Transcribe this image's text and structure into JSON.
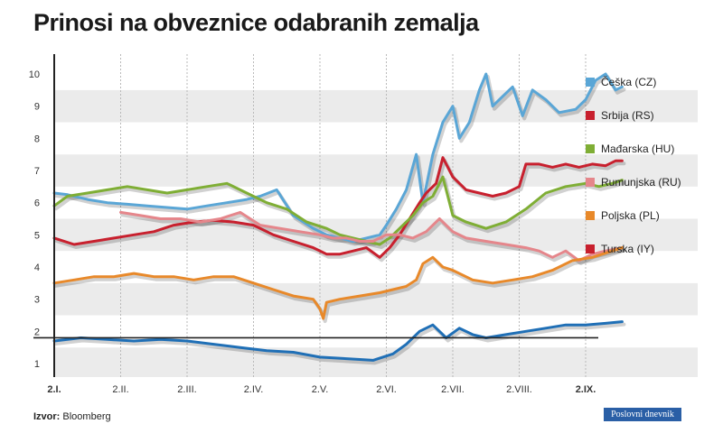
{
  "chart_data": {
    "type": "line",
    "title": "Prinosi na obveznice odabranih zemalja",
    "xlabel": "",
    "ylabel": "",
    "ylim": [
      0.5,
      10.5
    ],
    "yticks": [
      1,
      2,
      3,
      4,
      5,
      6,
      7,
      8,
      9,
      10
    ],
    "reference_line": 1.8,
    "x_months": [
      {
        "label": "2.I.",
        "month": 0,
        "bold": true
      },
      {
        "label": "2.II.",
        "month": 1,
        "bold": false
      },
      {
        "label": "2.III.",
        "month": 2,
        "bold": false
      },
      {
        "label": "2.IV.",
        "month": 3,
        "bold": false
      },
      {
        "label": "2.V.",
        "month": 4,
        "bold": false
      },
      {
        "label": "2.VI.",
        "month": 5,
        "bold": false
      },
      {
        "label": "2.VII.",
        "month": 6,
        "bold": false
      },
      {
        "label": "2.VIII.",
        "month": 7,
        "bold": false
      },
      {
        "label": "2.IX.",
        "month": 8,
        "bold": true
      }
    ],
    "x_end_month": 8.6,
    "series": [
      {
        "name": "Češka (CZ)",
        "color": "#5aa6d6",
        "x": [
          0,
          0.2,
          0.5,
          0.8,
          1.1,
          1.4,
          1.7,
          2.0,
          2.3,
          2.6,
          2.9,
          3.1,
          3.35,
          3.6,
          3.9,
          4.1,
          4.3,
          4.5,
          4.7,
          4.9,
          5.0,
          5.15,
          5.3,
          5.45,
          5.55,
          5.7,
          5.85,
          6.0,
          6.1,
          6.25,
          6.4,
          6.5,
          6.6,
          6.75,
          6.9,
          7.05,
          7.2,
          7.4,
          7.6,
          7.85,
          8.0,
          8.15,
          8.3,
          8.45,
          8.55
        ],
        "y": [
          6.3,
          6.25,
          6.1,
          6.0,
          5.95,
          5.9,
          5.85,
          5.8,
          5.9,
          6.0,
          6.1,
          6.2,
          6.4,
          5.6,
          5.2,
          5.0,
          4.9,
          4.8,
          4.9,
          5.0,
          5.3,
          5.8,
          6.4,
          7.5,
          6.0,
          7.5,
          8.5,
          9.0,
          8.0,
          8.5,
          9.5,
          10.0,
          9.0,
          9.3,
          9.6,
          8.7,
          9.5,
          9.2,
          8.8,
          8.9,
          9.2,
          9.8,
          10.0,
          9.5,
          9.6
        ]
      },
      {
        "name": "Srbija (RS)",
        "color": "#c8202e",
        "x": [
          0,
          0.3,
          0.6,
          0.9,
          1.2,
          1.5,
          1.8,
          2.1,
          2.4,
          2.7,
          3.0,
          3.3,
          3.6,
          3.9,
          4.1,
          4.3,
          4.5,
          4.7,
          4.9,
          5.05,
          5.2,
          5.35,
          5.5,
          5.6,
          5.75,
          5.85,
          6.0,
          6.2,
          6.4,
          6.6,
          6.8,
          7.0,
          7.1,
          7.3,
          7.5,
          7.7,
          7.9,
          8.1,
          8.3,
          8.45,
          8.55
        ],
        "y": [
          4.9,
          4.7,
          4.8,
          4.9,
          5.0,
          5.1,
          5.3,
          5.4,
          5.45,
          5.4,
          5.3,
          5.0,
          4.8,
          4.6,
          4.4,
          4.4,
          4.5,
          4.6,
          4.3,
          4.6,
          5.0,
          5.5,
          6.0,
          6.3,
          6.6,
          7.4,
          6.8,
          6.4,
          6.3,
          6.2,
          6.3,
          6.5,
          7.2,
          7.2,
          7.1,
          7.2,
          7.1,
          7.2,
          7.15,
          7.3,
          7.3
        ]
      },
      {
        "name": "Mađarska (HU)",
        "color": "#7fae35",
        "x": [
          0,
          0.2,
          0.5,
          0.8,
          1.1,
          1.4,
          1.7,
          2.0,
          2.3,
          2.6,
          2.9,
          3.2,
          3.5,
          3.8,
          4.1,
          4.3,
          4.5,
          4.7,
          4.9,
          5.05,
          5.2,
          5.4,
          5.55,
          5.7,
          5.85,
          6.0,
          6.2,
          6.5,
          6.8,
          7.1,
          7.4,
          7.7,
          8.0,
          8.2,
          8.4,
          8.55
        ],
        "y": [
          5.9,
          6.2,
          6.3,
          6.4,
          6.5,
          6.4,
          6.3,
          6.4,
          6.5,
          6.6,
          6.3,
          6.0,
          5.8,
          5.4,
          5.2,
          5.0,
          4.9,
          4.8,
          4.7,
          4.9,
          5.2,
          5.6,
          6.0,
          6.2,
          6.8,
          5.6,
          5.4,
          5.2,
          5.4,
          5.8,
          6.3,
          6.5,
          6.6,
          6.5,
          6.6,
          6.7
        ]
      },
      {
        "name": "Rumunjska (RU)",
        "color": "#e5868b",
        "x": [
          1.0,
          1.3,
          1.6,
          1.9,
          2.2,
          2.5,
          2.8,
          3.1,
          3.4,
          3.7,
          4.0,
          4.2,
          4.4,
          4.6,
          4.8,
          5.0,
          5.2,
          5.4,
          5.6,
          5.8,
          6.0,
          6.2,
          6.5,
          6.8,
          7.1,
          7.3,
          7.5,
          7.7,
          7.9,
          8.1,
          8.3,
          8.55
        ],
        "y": [
          5.7,
          5.6,
          5.5,
          5.5,
          5.4,
          5.5,
          5.7,
          5.3,
          5.2,
          5.1,
          5.0,
          4.9,
          4.9,
          4.8,
          4.8,
          5.0,
          5.0,
          4.9,
          5.1,
          5.5,
          5.1,
          4.9,
          4.8,
          4.7,
          4.6,
          4.5,
          4.3,
          4.5,
          4.2,
          4.4,
          4.5,
          4.6
        ]
      },
      {
        "name": "Poljska (PL)",
        "color": "#e8892a",
        "x": [
          0,
          0.3,
          0.6,
          0.9,
          1.2,
          1.5,
          1.8,
          2.1,
          2.4,
          2.7,
          3.0,
          3.3,
          3.6,
          3.9,
          4.0,
          4.05,
          4.1,
          4.3,
          4.6,
          4.9,
          5.1,
          5.3,
          5.45,
          5.55,
          5.7,
          5.85,
          6.0,
          6.3,
          6.6,
          6.9,
          7.2,
          7.5,
          7.8,
          8.1,
          8.4,
          8.55
        ],
        "y": [
          3.5,
          3.6,
          3.7,
          3.7,
          3.8,
          3.7,
          3.7,
          3.6,
          3.7,
          3.7,
          3.5,
          3.3,
          3.1,
          3.0,
          2.7,
          2.4,
          2.9,
          3.0,
          3.1,
          3.2,
          3.3,
          3.4,
          3.6,
          4.1,
          4.3,
          4.0,
          3.9,
          3.6,
          3.5,
          3.6,
          3.7,
          3.9,
          4.2,
          4.3,
          4.5,
          4.6
        ]
      },
      {
        "name": "Turska (IY)",
        "color": "#c8202e",
        "values": []
      },
      {
        "name": "",
        "color": "#1f6fb6",
        "x": [
          0,
          0.4,
          0.8,
          1.2,
          1.6,
          2.0,
          2.4,
          2.8,
          3.2,
          3.6,
          4.0,
          4.4,
          4.8,
          5.1,
          5.3,
          5.5,
          5.7,
          5.9,
          6.1,
          6.3,
          6.5,
          6.8,
          7.1,
          7.4,
          7.7,
          8.0,
          8.3,
          8.55
        ],
        "y": [
          1.7,
          1.8,
          1.75,
          1.7,
          1.75,
          1.7,
          1.6,
          1.5,
          1.4,
          1.35,
          1.2,
          1.15,
          1.1,
          1.3,
          1.6,
          2.0,
          2.2,
          1.8,
          2.1,
          1.9,
          1.8,
          1.9,
          2.0,
          2.1,
          2.2,
          2.2,
          2.25,
          2.3
        ]
      }
    ]
  },
  "source": {
    "label": "Izvor:",
    "value": "Bloomberg"
  },
  "brand": "Poslovni dnevnik"
}
